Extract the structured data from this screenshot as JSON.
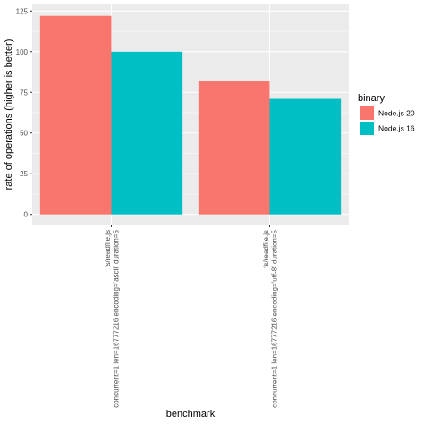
{
  "chart_data": {
    "type": "bar",
    "title": "",
    "xlabel": "benchmark",
    "ylabel": "rate of operations (higher is better)",
    "ylim": [
      -6.2,
      129
    ],
    "yticks": [
      0,
      25,
      50,
      75,
      100,
      125
    ],
    "grid": true,
    "legend_position": "right",
    "legend_title": "binary",
    "categories": [
      [
        "fs/readfile.js",
        "concurrent=1 len=16777216 encoding='ascii' duration=5"
      ],
      [
        "fs/readfile.js",
        "concurrent=1 len=16777216 encoding='utf-8' duration=5"
      ]
    ],
    "series": [
      {
        "name": "Node.js 20",
        "color": "#f8766d",
        "values": [
          122,
          82
        ]
      },
      {
        "name": "Node.js 16",
        "color": "#00bfc4",
        "values": [
          100,
          71
        ]
      }
    ]
  }
}
